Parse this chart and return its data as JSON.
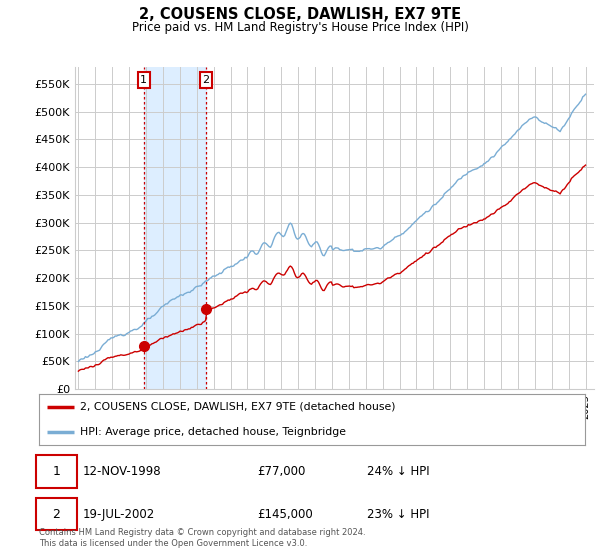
{
  "title": "2, COUSENS CLOSE, DAWLISH, EX7 9TE",
  "subtitle": "Price paid vs. HM Land Registry's House Price Index (HPI)",
  "legend_line1": "2, COUSENS CLOSE, DAWLISH, EX7 9TE (detached house)",
  "legend_line2": "HPI: Average price, detached house, Teignbridge",
  "table_row1": [
    "1",
    "12-NOV-1998",
    "£77,000",
    "24% ↓ HPI"
  ],
  "table_row2": [
    "2",
    "19-JUL-2002",
    "£145,000",
    "23% ↓ HPI"
  ],
  "footnote": "Contains HM Land Registry data © Crown copyright and database right 2024.\nThis data is licensed under the Open Government Licence v3.0.",
  "sale1_date": 1998.87,
  "sale1_price": 77000,
  "sale2_date": 2002.54,
  "sale2_price": 145000,
  "plot_color_red": "#cc0000",
  "plot_color_blue": "#7aadd4",
  "sale_marker_color": "#cc0000",
  "shaded_region_color": "#ddeeff",
  "vline_color": "#cc0000",
  "grid_color": "#cccccc",
  "background_color": "#ffffff",
  "ylim": [
    0,
    580000
  ],
  "yticks": [
    0,
    50000,
    100000,
    150000,
    200000,
    250000,
    300000,
    350000,
    400000,
    450000,
    500000,
    550000
  ],
  "xmin": 1994.8,
  "xmax": 2025.5
}
